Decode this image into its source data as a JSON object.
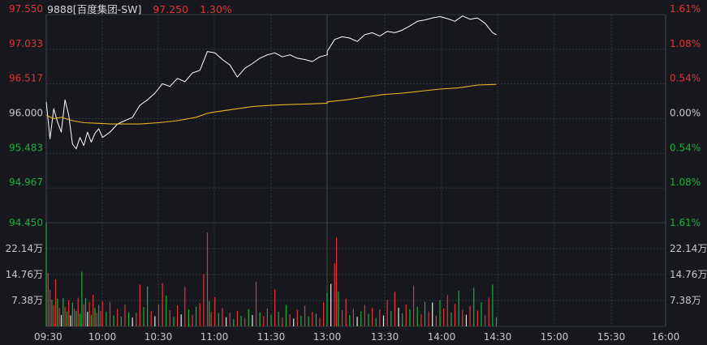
{
  "header": {
    "name": "9888[百度集团-SW]",
    "price": "97.250",
    "change_pct": "1.30%"
  },
  "colors": {
    "background": "#16181d",
    "grid": "#33363c",
    "axis_text": "#c8c8c8",
    "up": "#e0353b",
    "down": "#18b23a",
    "neutral": "#c8c8c8",
    "price_line": "#ffffff",
    "avg_line": "#e6b422",
    "vol_neutral": "#e8e8e8"
  },
  "chart_data": [
    {
      "type": "line",
      "title": "",
      "prev_close": 96.0,
      "ylim": [
        94.45,
        97.55
      ],
      "x_ticks": [
        "09:30",
        "10:00",
        "10:30",
        "11:00",
        "11:30",
        "13:00",
        "13:30",
        "14:00",
        "14:30",
        "15:00",
        "15:30",
        "16:00"
      ],
      "y_ticks_left": [
        "97.550",
        "97.033",
        "96.517",
        "96.000",
        "95.483",
        "94.967",
        "94.450"
      ],
      "y_ticks_right": [
        "1.61%",
        "1.08%",
        "0.54%",
        "0.00%",
        "0.54%",
        "1.08%",
        "1.61%"
      ],
      "series": [
        {
          "name": "",
          "role": "price",
          "x": [
            "09:30",
            "09:32",
            "09:34",
            "09:36",
            "09:38",
            "09:40",
            "09:42",
            "09:44",
            "09:46",
            "09:48",
            "09:50",
            "09:52",
            "09:54",
            "09:56",
            "09:58",
            "10:00",
            "10:04",
            "10:08",
            "10:12",
            "10:16",
            "10:20",
            "10:24",
            "10:28",
            "10:32",
            "10:36",
            "10:40",
            "10:44",
            "10:48",
            "10:52",
            "10:56",
            "11:00",
            "11:04",
            "11:08",
            "11:12",
            "11:16",
            "11:20",
            "11:24",
            "11:28",
            "11:32",
            "11:36",
            "11:40",
            "11:44",
            "11:48",
            "11:52",
            "11:56",
            "12:00",
            "13:00",
            "13:04",
            "13:08",
            "13:12",
            "13:16",
            "13:20",
            "13:24",
            "13:28",
            "13:32",
            "13:36",
            "13:40",
            "13:44",
            "13:48",
            "13:52",
            "13:56",
            "14:00",
            "14:04",
            "14:08",
            "14:12",
            "14:16",
            "14:20",
            "14:24",
            "14:28",
            "14:30"
          ],
          "y": [
            96.25,
            95.7,
            96.15,
            95.95,
            95.8,
            96.28,
            96.05,
            95.62,
            95.55,
            95.72,
            95.6,
            95.8,
            95.65,
            95.78,
            95.85,
            95.72,
            95.8,
            95.92,
            95.97,
            96.02,
            96.2,
            96.28,
            96.38,
            96.52,
            96.48,
            96.6,
            96.55,
            96.68,
            96.72,
            97.0,
            96.98,
            96.88,
            96.8,
            96.62,
            96.75,
            96.82,
            96.9,
            96.95,
            96.98,
            96.92,
            96.95,
            96.9,
            96.88,
            96.85,
            96.92,
            96.95,
            97.0,
            97.18,
            97.22,
            97.2,
            97.15,
            97.25,
            97.28,
            97.23,
            97.3,
            97.28,
            97.32,
            97.38,
            97.45,
            97.47,
            97.5,
            97.52,
            97.49,
            97.45,
            97.53,
            97.48,
            97.5,
            97.42,
            97.28,
            97.25
          ]
        },
        {
          "name": "",
          "role": "average",
          "x": [
            "09:30",
            "09:34",
            "09:38",
            "09:44",
            "09:50",
            "09:58",
            "10:04",
            "10:10",
            "10:20",
            "10:30",
            "10:40",
            "10:50",
            "10:56",
            "11:00",
            "11:10",
            "11:20",
            "11:30",
            "11:40",
            "11:50",
            "12:00",
            "13:00",
            "13:10",
            "13:20",
            "13:30",
            "13:40",
            "13:50",
            "14:00",
            "14:10",
            "14:20",
            "14:30"
          ],
          "y": [
            96.05,
            96.0,
            96.02,
            95.97,
            95.94,
            95.93,
            95.92,
            95.92,
            95.92,
            95.94,
            95.97,
            96.02,
            96.08,
            96.1,
            96.14,
            96.18,
            96.2,
            96.21,
            96.22,
            96.23,
            96.25,
            96.28,
            96.32,
            96.36,
            96.38,
            96.41,
            96.44,
            96.46,
            96.5,
            96.51
          ]
        }
      ]
    },
    {
      "type": "bar",
      "title": "",
      "ylabel": "",
      "y_ticks": [
        "22.14万",
        "14.76万",
        "7.38万"
      ],
      "y_tick_values": [
        22.14,
        14.76,
        7.38
      ],
      "ylim": [
        0,
        29.52
      ],
      "unit": "万",
      "x_range": [
        "09:30",
        "14:30"
      ],
      "bars": [
        {
          "t": "09:30",
          "v": 29.5,
          "d": "down"
        },
        {
          "t": "09:31",
          "v": 15.2,
          "d": "up"
        },
        {
          "t": "09:32",
          "v": 10.4,
          "d": "up"
        },
        {
          "t": "09:33",
          "v": 7.6,
          "d": "down"
        },
        {
          "t": "09:34",
          "v": 6.1,
          "d": "up"
        },
        {
          "t": "09:35",
          "v": 13.4,
          "d": "up"
        },
        {
          "t": "09:36",
          "v": 7.9,
          "d": "down"
        },
        {
          "t": "09:37",
          "v": 5.3,
          "d": "up"
        },
        {
          "t": "09:38",
          "v": 3.2,
          "d": "flat"
        },
        {
          "t": "09:39",
          "v": 8.1,
          "d": "down"
        },
        {
          "t": "09:40",
          "v": 5.5,
          "d": "up"
        },
        {
          "t": "09:41",
          "v": 4.2,
          "d": "down"
        },
        {
          "t": "09:42",
          "v": 7.4,
          "d": "up"
        },
        {
          "t": "09:43",
          "v": 3.1,
          "d": "flat"
        },
        {
          "t": "09:44",
          "v": 6.8,
          "d": "down"
        },
        {
          "t": "09:45",
          "v": 5.1,
          "d": "up"
        },
        {
          "t": "09:46",
          "v": 4.4,
          "d": "down"
        },
        {
          "t": "09:47",
          "v": 8.2,
          "d": "up"
        },
        {
          "t": "09:48",
          "v": 3.6,
          "d": "down"
        },
        {
          "t": "09:49",
          "v": 15.6,
          "d": "down"
        },
        {
          "t": "09:50",
          "v": 6.3,
          "d": "up"
        },
        {
          "t": "09:51",
          "v": 8.0,
          "d": "down"
        },
        {
          "t": "09:52",
          "v": 4.1,
          "d": "flat"
        },
        {
          "t": "09:53",
          "v": 6.9,
          "d": "up"
        },
        {
          "t": "09:54",
          "v": 3.3,
          "d": "down"
        },
        {
          "t": "09:55",
          "v": 9.0,
          "d": "up"
        },
        {
          "t": "09:56",
          "v": 5.2,
          "d": "down"
        },
        {
          "t": "09:57",
          "v": 3.8,
          "d": "up"
        },
        {
          "t": "09:58",
          "v": 6.1,
          "d": "down"
        },
        {
          "t": "09:59",
          "v": 4.4,
          "d": "up"
        },
        {
          "t": "10:00",
          "v": 7.1,
          "d": "up"
        },
        {
          "t": "10:02",
          "v": 4.2,
          "d": "down"
        },
        {
          "t": "10:04",
          "v": 7.0,
          "d": "up"
        },
        {
          "t": "10:06",
          "v": 3.1,
          "d": "down"
        },
        {
          "t": "10:08",
          "v": 5.0,
          "d": "up"
        },
        {
          "t": "10:10",
          "v": 2.8,
          "d": "down"
        },
        {
          "t": "10:12",
          "v": 6.2,
          "d": "up"
        },
        {
          "t": "10:14",
          "v": 4.0,
          "d": "down"
        },
        {
          "t": "10:16",
          "v": 2.5,
          "d": "flat"
        },
        {
          "t": "10:18",
          "v": 3.9,
          "d": "up"
        },
        {
          "t": "10:20",
          "v": 11.9,
          "d": "up"
        },
        {
          "t": "10:22",
          "v": 5.5,
          "d": "down"
        },
        {
          "t": "10:24",
          "v": 11.4,
          "d": "down"
        },
        {
          "t": "10:26",
          "v": 4.3,
          "d": "up"
        },
        {
          "t": "10:28",
          "v": 2.9,
          "d": "flat"
        },
        {
          "t": "10:30",
          "v": 6.2,
          "d": "up"
        },
        {
          "t": "10:32",
          "v": 12.3,
          "d": "up"
        },
        {
          "t": "10:34",
          "v": 8.8,
          "d": "down"
        },
        {
          "t": "10:36",
          "v": 4.6,
          "d": "up"
        },
        {
          "t": "10:38",
          "v": 2.7,
          "d": "down"
        },
        {
          "t": "10:40",
          "v": 6.0,
          "d": "up"
        },
        {
          "t": "10:42",
          "v": 3.4,
          "d": "flat"
        },
        {
          "t": "10:44",
          "v": 11.2,
          "d": "up"
        },
        {
          "t": "10:46",
          "v": 4.8,
          "d": "down"
        },
        {
          "t": "10:48",
          "v": 3.3,
          "d": "up"
        },
        {
          "t": "10:50",
          "v": 5.6,
          "d": "down"
        },
        {
          "t": "10:52",
          "v": 6.6,
          "d": "up"
        },
        {
          "t": "10:54",
          "v": 14.9,
          "d": "up"
        },
        {
          "t": "10:56",
          "v": 26.7,
          "d": "up"
        },
        {
          "t": "10:57",
          "v": 7.2,
          "d": "down"
        },
        {
          "t": "10:58",
          "v": 4.1,
          "d": "up"
        },
        {
          "t": "11:00",
          "v": 8.3,
          "d": "up"
        },
        {
          "t": "11:02",
          "v": 3.8,
          "d": "down"
        },
        {
          "t": "11:04",
          "v": 5.2,
          "d": "up"
        },
        {
          "t": "11:06",
          "v": 2.6,
          "d": "flat"
        },
        {
          "t": "11:08",
          "v": 3.9,
          "d": "up"
        },
        {
          "t": "11:10",
          "v": 2.1,
          "d": "down"
        },
        {
          "t": "11:12",
          "v": 4.4,
          "d": "up"
        },
        {
          "t": "11:14",
          "v": 3.0,
          "d": "down"
        },
        {
          "t": "11:16",
          "v": 2.4,
          "d": "up"
        },
        {
          "t": "11:18",
          "v": 4.9,
          "d": "down"
        },
        {
          "t": "11:20",
          "v": 3.2,
          "d": "flat"
        },
        {
          "t": "11:22",
          "v": 12.7,
          "d": "up"
        },
        {
          "t": "11:24",
          "v": 4.0,
          "d": "down"
        },
        {
          "t": "11:26",
          "v": 2.9,
          "d": "up"
        },
        {
          "t": "11:28",
          "v": 5.1,
          "d": "up"
        },
        {
          "t": "11:30",
          "v": 3.3,
          "d": "down"
        },
        {
          "t": "11:32",
          "v": 10.5,
          "d": "up"
        },
        {
          "t": "11:34",
          "v": 4.2,
          "d": "down"
        },
        {
          "t": "11:36",
          "v": 2.5,
          "d": "up"
        },
        {
          "t": "11:38",
          "v": 6.1,
          "d": "down"
        },
        {
          "t": "11:40",
          "v": 3.5,
          "d": "up"
        },
        {
          "t": "11:42",
          "v": 2.2,
          "d": "flat"
        },
        {
          "t": "11:44",
          "v": 4.7,
          "d": "up"
        },
        {
          "t": "11:46",
          "v": 3.0,
          "d": "down"
        },
        {
          "t": "11:48",
          "v": 5.9,
          "d": "up"
        },
        {
          "t": "11:50",
          "v": 2.8,
          "d": "down"
        },
        {
          "t": "11:52",
          "v": 4.1,
          "d": "up"
        },
        {
          "t": "11:54",
          "v": 3.6,
          "d": "down"
        },
        {
          "t": "11:56",
          "v": 2.4,
          "d": "up"
        },
        {
          "t": "11:58",
          "v": 6.8,
          "d": "up"
        },
        {
          "t": "13:00",
          "v": 9.6,
          "d": "down"
        },
        {
          "t": "13:02",
          "v": 12.1,
          "d": "flat"
        },
        {
          "t": "13:04",
          "v": 18.0,
          "d": "up"
        },
        {
          "t": "13:05",
          "v": 25.3,
          "d": "up"
        },
        {
          "t": "13:06",
          "v": 9.9,
          "d": "down"
        },
        {
          "t": "13:08",
          "v": 4.6,
          "d": "up"
        },
        {
          "t": "13:10",
          "v": 7.9,
          "d": "up"
        },
        {
          "t": "13:12",
          "v": 3.2,
          "d": "down"
        },
        {
          "t": "13:14",
          "v": 5.0,
          "d": "up"
        },
        {
          "t": "13:16",
          "v": 2.7,
          "d": "flat"
        },
        {
          "t": "13:18",
          "v": 4.3,
          "d": "down"
        },
        {
          "t": "13:20",
          "v": 6.1,
          "d": "up"
        },
        {
          "t": "13:22",
          "v": 3.6,
          "d": "down"
        },
        {
          "t": "13:24",
          "v": 5.2,
          "d": "up"
        },
        {
          "t": "13:26",
          "v": 2.4,
          "d": "down"
        },
        {
          "t": "13:28",
          "v": 4.8,
          "d": "up"
        },
        {
          "t": "13:30",
          "v": 3.1,
          "d": "flat"
        },
        {
          "t": "13:32",
          "v": 7.5,
          "d": "up"
        },
        {
          "t": "13:34",
          "v": 4.4,
          "d": "down"
        },
        {
          "t": "13:36",
          "v": 9.8,
          "d": "up"
        },
        {
          "t": "13:38",
          "v": 5.3,
          "d": "flat"
        },
        {
          "t": "13:40",
          "v": 3.7,
          "d": "down"
        },
        {
          "t": "13:42",
          "v": 6.2,
          "d": "up"
        },
        {
          "t": "13:44",
          "v": 4.9,
          "d": "down"
        },
        {
          "t": "13:46",
          "v": 11.6,
          "d": "up"
        },
        {
          "t": "13:48",
          "v": 5.6,
          "d": "down"
        },
        {
          "t": "13:50",
          "v": 3.4,
          "d": "up"
        },
        {
          "t": "13:52",
          "v": 7.0,
          "d": "down"
        },
        {
          "t": "13:54",
          "v": 4.2,
          "d": "up"
        },
        {
          "t": "13:56",
          "v": 6.8,
          "d": "flat"
        },
        {
          "t": "13:58",
          "v": 3.0,
          "d": "up"
        },
        {
          "t": "14:00",
          "v": 7.4,
          "d": "down"
        },
        {
          "t": "14:02",
          "v": 5.1,
          "d": "up"
        },
        {
          "t": "14:04",
          "v": 8.9,
          "d": "up"
        },
        {
          "t": "14:06",
          "v": 3.9,
          "d": "down"
        },
        {
          "t": "14:08",
          "v": 6.4,
          "d": "up"
        },
        {
          "t": "14:10",
          "v": 10.2,
          "d": "down"
        },
        {
          "t": "14:12",
          "v": 4.7,
          "d": "up"
        },
        {
          "t": "14:14",
          "v": 3.3,
          "d": "flat"
        },
        {
          "t": "14:16",
          "v": 5.8,
          "d": "up"
        },
        {
          "t": "14:18",
          "v": 11.0,
          "d": "down"
        },
        {
          "t": "14:20",
          "v": 4.5,
          "d": "up"
        },
        {
          "t": "14:22",
          "v": 6.9,
          "d": "down"
        },
        {
          "t": "14:24",
          "v": 3.1,
          "d": "up"
        },
        {
          "t": "14:26",
          "v": 8.2,
          "d": "up"
        },
        {
          "t": "14:28",
          "v": 11.9,
          "d": "down"
        },
        {
          "t": "14:30",
          "v": 2.6,
          "d": "down"
        }
      ]
    }
  ]
}
